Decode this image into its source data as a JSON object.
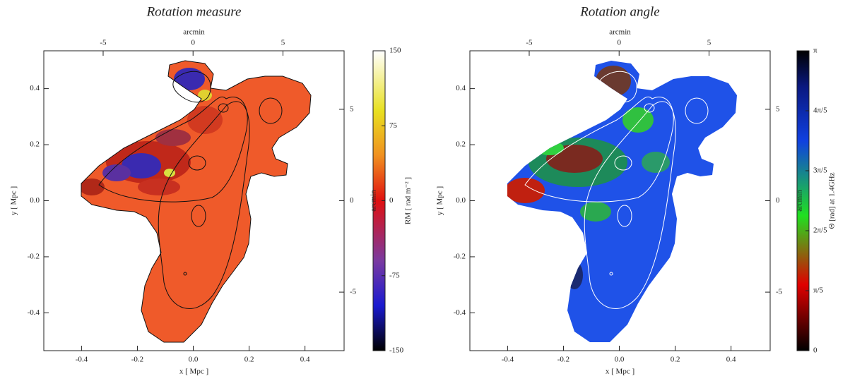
{
  "panels": [
    {
      "title": "Rotation measure",
      "x_label": "x [ Mpc ]",
      "y_label": "y [ Mpc ]",
      "top_label": "arcmin",
      "right_label": "arcmin",
      "xlim": [
        -0.535,
        0.54
      ],
      "xticks": [
        -0.4,
        -0.2,
        {
          "value": 0,
          "label": "0.0"
        },
        0.2,
        0.4
      ],
      "ylim": [
        -0.535,
        0.535
      ],
      "yticks": [
        -0.4,
        -0.2,
        {
          "value": 0,
          "label": "0.0"
        },
        0.2,
        0.4
      ],
      "top_lim": [
        -8.3,
        8.4
      ],
      "top_ticks": [
        -5,
        0,
        5
      ],
      "right_lim": [
        -8.2,
        8.2
      ],
      "right_ticks": [
        -5,
        0,
        5
      ],
      "colorbar": {
        "label": "RM [ rad m⁻² ]",
        "lim": [
          -150,
          150
        ],
        "ticks": [
          -150,
          -75,
          0,
          75,
          150
        ]
      }
    },
    {
      "title": "Rotation angle",
      "x_label": "x [ Mpc ]",
      "y_label": "y [ Mpc ]",
      "top_label": "arcmin",
      "right_label": "arcmin",
      "xlim": [
        -0.535,
        0.54
      ],
      "xticks": [
        -0.4,
        -0.2,
        {
          "value": 0,
          "label": "0.0"
        },
        0.2,
        0.4
      ],
      "ylim": [
        -0.535,
        0.535
      ],
      "yticks": [
        -0.4,
        -0.2,
        {
          "value": 0,
          "label": "0.0"
        },
        0.2,
        0.4
      ],
      "top_lim": [
        -8.3,
        8.4
      ],
      "top_ticks": [
        -5,
        0,
        5
      ],
      "right_lim": [
        -8.2,
        8.2
      ],
      "right_ticks": [
        -5,
        0,
        5
      ],
      "colorbar": {
        "label": "Θ [rad] at 1.4GHz",
        "lim": [
          0,
          3.1416
        ],
        "ticks": [
          0,
          {
            "value": 0.6283,
            "label": "π/5"
          },
          {
            "value": 1.2566,
            "label": "2π/5"
          },
          {
            "value": 1.885,
            "label": "3π/5"
          },
          {
            "value": 2.5133,
            "label": "4π/5"
          },
          {
            "value": 3.1416,
            "label": "π"
          }
        ]
      }
    }
  ]
}
